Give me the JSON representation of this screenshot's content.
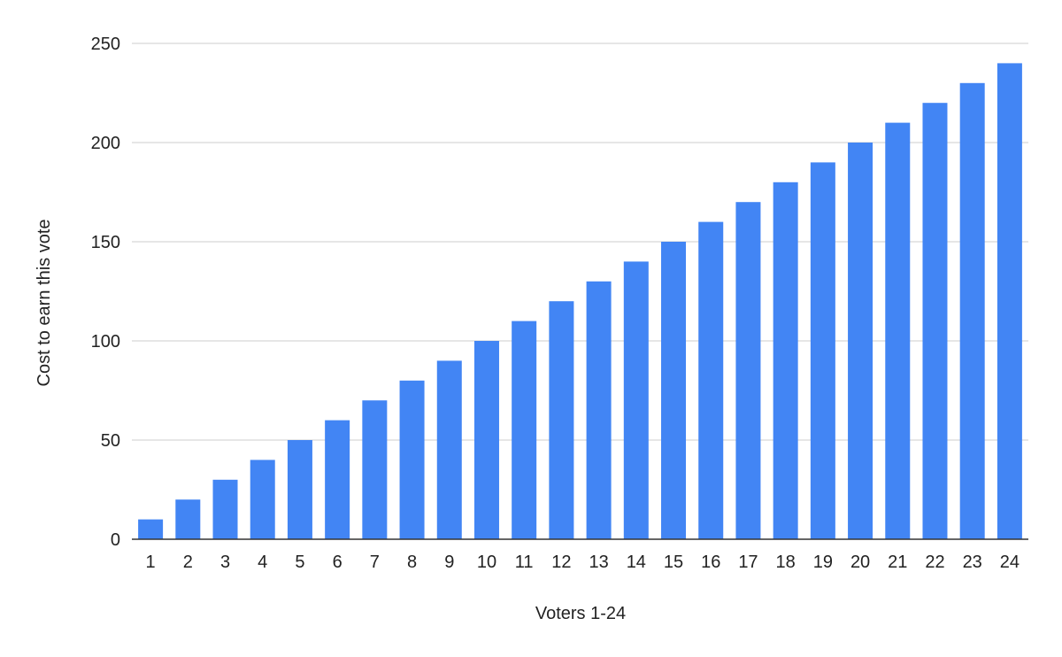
{
  "chart_data": {
    "type": "bar",
    "xlabel": "Voters 1-24",
    "ylabel": "Cost to earn this vote",
    "categories": [
      "1",
      "2",
      "3",
      "4",
      "5",
      "6",
      "7",
      "8",
      "9",
      "10",
      "11",
      "12",
      "13",
      "14",
      "15",
      "16",
      "17",
      "18",
      "19",
      "20",
      "21",
      "22",
      "23",
      "24"
    ],
    "values": [
      10,
      20,
      30,
      40,
      50,
      60,
      70,
      80,
      90,
      100,
      110,
      120,
      130,
      140,
      150,
      160,
      170,
      180,
      190,
      200,
      210,
      220,
      230,
      240
    ],
    "ylim": [
      0,
      250
    ],
    "yticks": [
      0,
      50,
      100,
      150,
      200,
      250
    ],
    "grid": true,
    "legend": "none",
    "colors": {
      "bar": "#4285f4",
      "grid": "#cccccc",
      "axis": "#333333"
    }
  }
}
